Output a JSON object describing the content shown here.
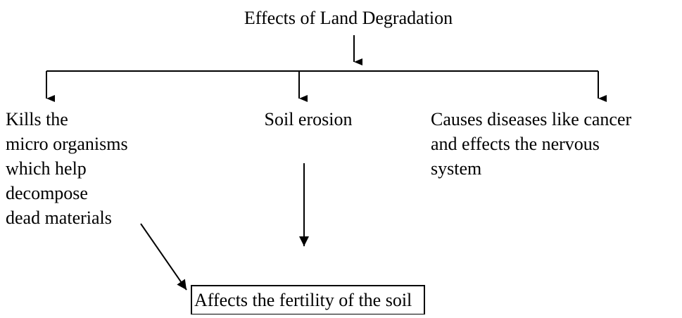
{
  "title": "Effects of Land Degradation",
  "nodes": [
    {
      "label": [
        "Kills the",
        "micro organisms",
        "which help",
        "decompose",
        "dead materials"
      ]
    },
    {
      "label": [
        "Soil erosion"
      ]
    },
    {
      "label": [
        "Causes diseases like cancer",
        "and effects the nervous",
        "system"
      ]
    },
    {
      "label": [
        "Affects the fertility of the soil"
      ]
    }
  ]
}
